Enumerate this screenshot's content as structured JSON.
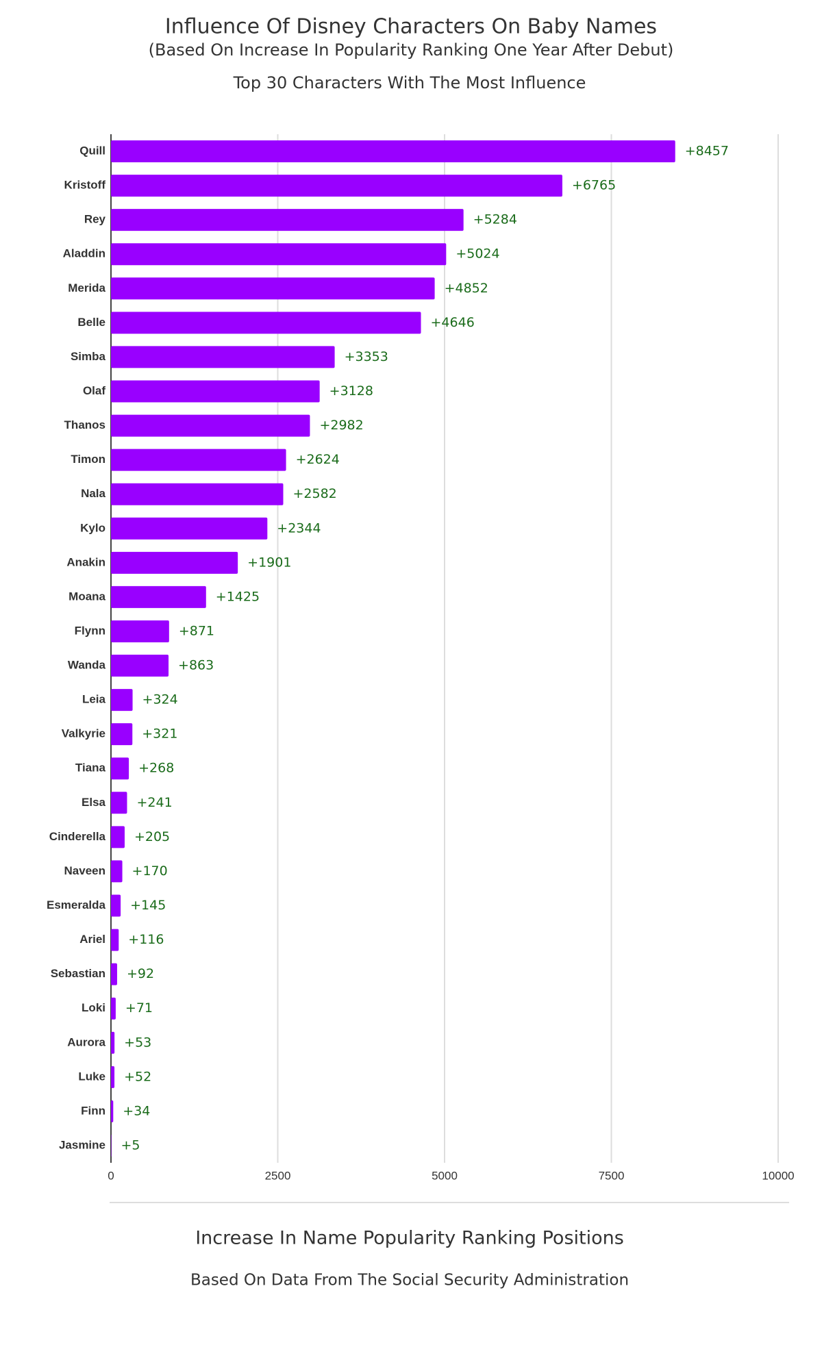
{
  "chart_data": {
    "type": "bar",
    "orientation": "horizontal",
    "title": "Influence Of Disney Characters On Baby Names",
    "subtitle": "(Based On Increase In Popularity Ranking One Year After Debut)",
    "description": "Top 30 Characters With The Most Influence",
    "xlabel": "Increase In Name Popularity Ranking Positions",
    "source": "Based On Data From The Social Security Administration",
    "categories": [
      "Quill",
      "Kristoff",
      "Rey",
      "Aladdin",
      "Merida",
      "Belle",
      "Simba",
      "Olaf",
      "Thanos",
      "Timon",
      "Nala",
      "Kylo",
      "Anakin",
      "Moana",
      "Flynn",
      "Wanda",
      "Leia",
      "Valkyrie",
      "Tiana",
      "Elsa",
      "Cinderella",
      "Naveen",
      "Esmeralda",
      "Ariel",
      "Sebastian",
      "Loki",
      "Aurora",
      "Luke",
      "Finn",
      "Jasmine"
    ],
    "values": [
      8457,
      6765,
      5284,
      5024,
      4852,
      4646,
      3353,
      3128,
      2982,
      2624,
      2582,
      2344,
      1901,
      1425,
      871,
      863,
      324,
      321,
      268,
      241,
      205,
      170,
      145,
      116,
      92,
      71,
      53,
      52,
      34,
      5
    ],
    "value_labels": [
      "+8457",
      "+6765",
      "+5284",
      "+5024",
      "+4852",
      "+4646",
      "+3353",
      "+3128",
      "+2982",
      "+2624",
      "+2582",
      "+2344",
      "+1901",
      "+1425",
      "+871",
      "+863",
      "+324",
      "+321",
      "+268",
      "+241",
      "+205",
      "+170",
      "+145",
      "+116",
      "+92",
      "+71",
      "+53",
      "+52",
      "+34",
      "+5"
    ],
    "color": "#9900ff",
    "xlim": [
      0,
      10000
    ],
    "xticks": [
      0,
      2500,
      5000,
      7500,
      10000
    ],
    "grid": true
  }
}
